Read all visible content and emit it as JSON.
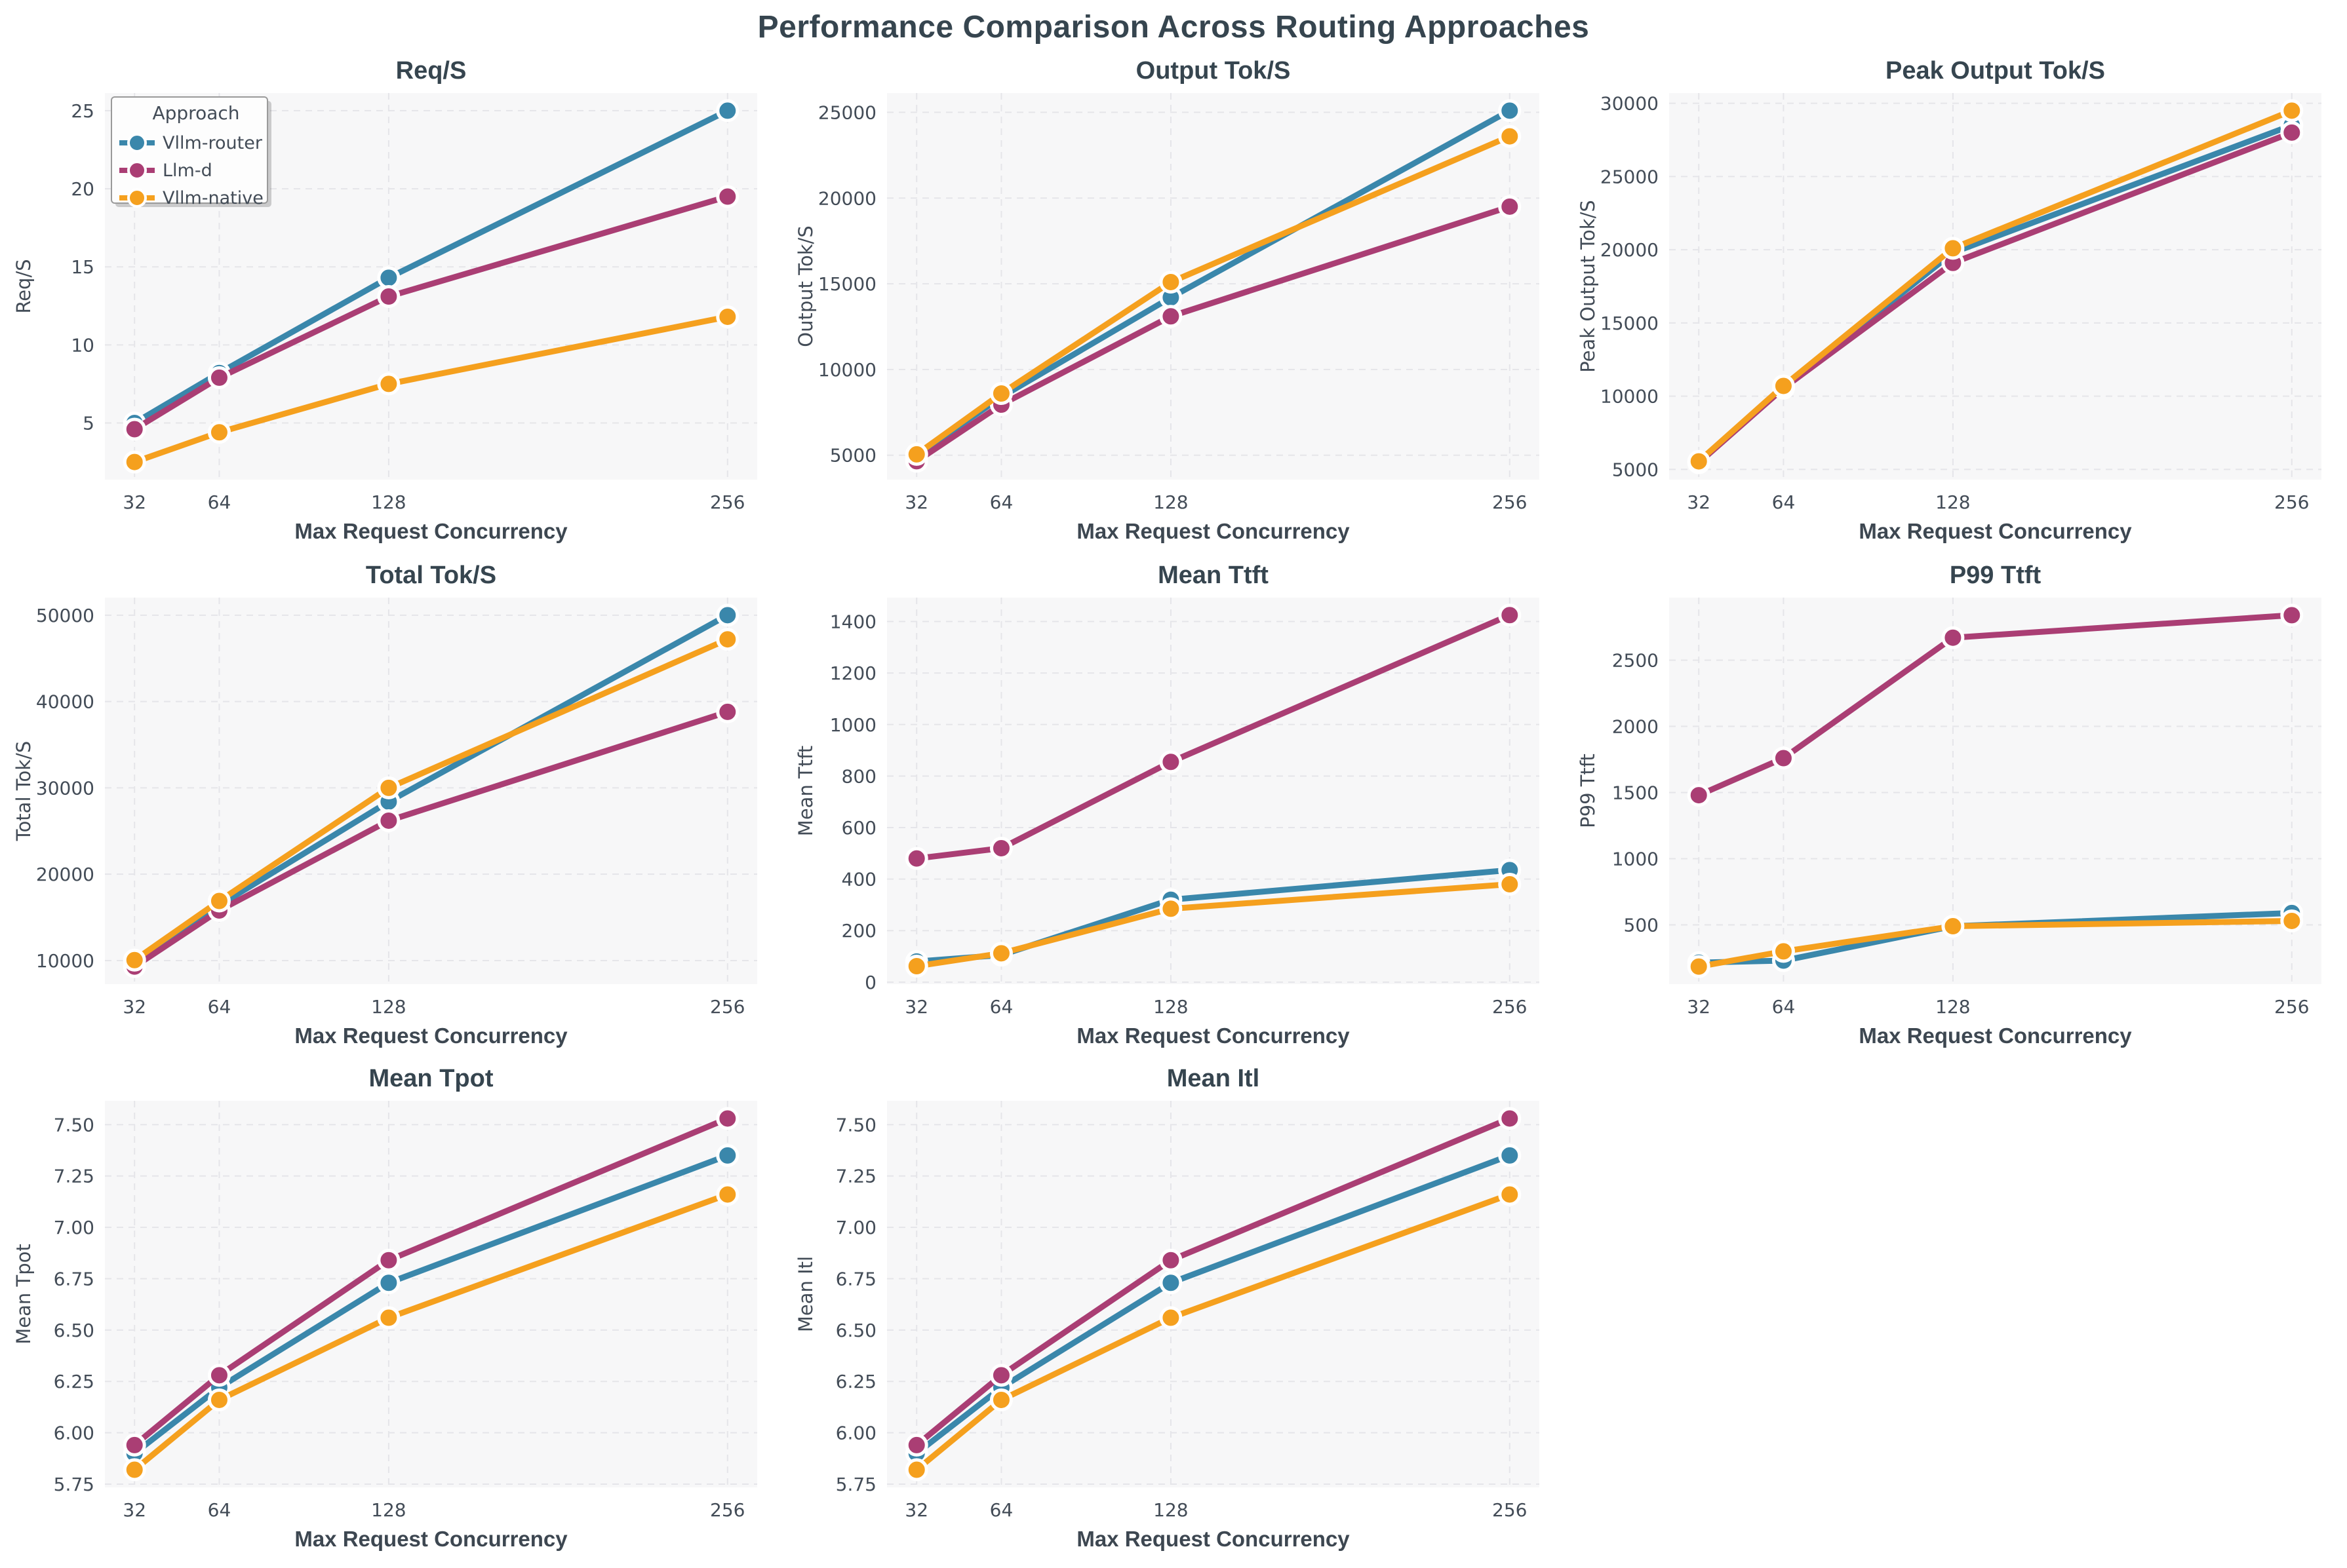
{
  "title": "Performance Comparison Across Routing Approaches",
  "xlabel": "Max Request Concurrency",
  "x_tick_labels": [
    "32",
    "64",
    "128",
    "256"
  ],
  "legend": {
    "title": "Approach"
  },
  "approaches": [
    {
      "name": "Vllm-router",
      "color": "#3a87ab"
    },
    {
      "name": "Llm-d",
      "color": "#aa3e74"
    },
    {
      "name": "Vllm-native",
      "color": "#f5a01e"
    }
  ],
  "style": {
    "plot_bg": "#f7f7f8",
    "grid_color": "#e5e5e9",
    "title_color": "#36454f",
    "tick_color": "#434c57",
    "axis_label_color": "#3d4751",
    "marker_edge": "#ffffff",
    "legend_bg": "#fdfdfd",
    "legend_border": "#9a9a9a"
  },
  "chart_data": [
    {
      "type": "line",
      "title": "Req/S",
      "ylabel": "Req/S",
      "xlabel": "Max Request Concurrency",
      "x": [
        32,
        64,
        128,
        256
      ],
      "xlim": [
        20.8,
        267.2
      ],
      "ylim": [
        1.37,
        26.13
      ],
      "grid": true,
      "legend": true,
      "legend_position": "upper left",
      "ytick_values": [
        5,
        10,
        15,
        20,
        25
      ],
      "ytick_labels": [
        "5",
        "10",
        "15",
        "20",
        "25"
      ],
      "series": [
        {
          "name": "Vllm-router",
          "values": [
            5.0,
            8.2,
            14.3,
            25.0
          ]
        },
        {
          "name": "Llm-d",
          "values": [
            4.6,
            7.9,
            13.1,
            19.5
          ]
        },
        {
          "name": "Vllm-native",
          "values": [
            2.5,
            4.4,
            7.5,
            11.8
          ]
        }
      ]
    },
    {
      "type": "line",
      "title": "Output Tok/S",
      "ylabel": "Output Tok/S",
      "xlabel": "Max Request Concurrency",
      "x": [
        32,
        64,
        128,
        256
      ],
      "xlim": [
        20.8,
        267.2
      ],
      "ylim": [
        3575,
        26125
      ],
      "grid": true,
      "legend": false,
      "ytick_values": [
        5000,
        10000,
        15000,
        20000,
        25000
      ],
      "ytick_labels": [
        "5000",
        "10000",
        "15000",
        "20000",
        "25000"
      ],
      "series": [
        {
          "name": "Vllm-router",
          "values": [
            5000,
            8400,
            14200,
            25100
          ]
        },
        {
          "name": "Llm-d",
          "values": [
            4650,
            7950,
            13100,
            19500
          ]
        },
        {
          "name": "Vllm-native",
          "values": [
            5050,
            8600,
            15100,
            23600
          ]
        }
      ]
    },
    {
      "type": "line",
      "title": "Peak Output Tok/S",
      "ylabel": "Peak Output Tok/S",
      "xlabel": "Max Request Concurrency",
      "x": [
        32,
        64,
        128,
        256
      ],
      "xlim": [
        20.8,
        267.2
      ],
      "ylim": [
        4300,
        30700
      ],
      "grid": true,
      "legend": false,
      "ytick_values": [
        5000,
        10000,
        15000,
        20000,
        25000,
        30000
      ],
      "ytick_labels": [
        "5000",
        "10000",
        "15000",
        "20000",
        "25000",
        "30000"
      ],
      "series": [
        {
          "name": "Vllm-router",
          "values": [
            5500,
            10600,
            19800,
            28500
          ]
        },
        {
          "name": "Llm-d",
          "values": [
            5450,
            10550,
            19100,
            28000
          ]
        },
        {
          "name": "Vllm-native",
          "values": [
            5550,
            10700,
            20100,
            29500
          ]
        }
      ]
    },
    {
      "type": "line",
      "title": "Total Tok/S",
      "ylabel": "Total Tok/S",
      "xlabel": "Max Request Concurrency",
      "x": [
        32,
        64,
        128,
        256
      ],
      "xlim": [
        20.8,
        267.2
      ],
      "ylim": [
        7265,
        52035
      ],
      "grid": true,
      "legend": false,
      "ytick_values": [
        10000,
        20000,
        30000,
        40000,
        50000
      ],
      "ytick_labels": [
        "10000",
        "20000",
        "30000",
        "40000",
        "50000"
      ],
      "series": [
        {
          "name": "Vllm-router",
          "values": [
            10000,
            16400,
            28400,
            50000
          ]
        },
        {
          "name": "Llm-d",
          "values": [
            9300,
            15800,
            26200,
            38800
          ]
        },
        {
          "name": "Vllm-native",
          "values": [
            10050,
            16900,
            30000,
            47200
          ]
        }
      ]
    },
    {
      "type": "line",
      "title": "Mean Ttft",
      "ylabel": "Mean Ttft",
      "xlabel": "Max Request Concurrency",
      "x": [
        32,
        64,
        128,
        256
      ],
      "xlim": [
        20.8,
        267.2
      ],
      "ylim": [
        -8,
        1493
      ],
      "grid": true,
      "legend": false,
      "ytick_values": [
        0,
        200,
        400,
        600,
        800,
        1000,
        1200,
        1400
      ],
      "ytick_labels": [
        "0",
        "200",
        "400",
        "600",
        "800",
        "1000",
        "1200",
        "1400"
      ],
      "series": [
        {
          "name": "Vllm-router",
          "values": [
            80,
            105,
            320,
            435
          ]
        },
        {
          "name": "Llm-d",
          "values": [
            480,
            520,
            855,
            1425
          ]
        },
        {
          "name": "Vllm-native",
          "values": [
            62,
            112,
            285,
            380
          ]
        }
      ]
    },
    {
      "type": "line",
      "title": "P99 Ttft",
      "ylabel": "P99 Ttft",
      "xlabel": "Max Request Concurrency",
      "x": [
        32,
        64,
        128,
        256
      ],
      "xlim": [
        20.8,
        267.2
      ],
      "ylim": [
        52,
        2973
      ],
      "grid": true,
      "legend": false,
      "ytick_values": [
        500,
        1000,
        1500,
        2000,
        2500
      ],
      "ytick_labels": [
        "500",
        "1000",
        "1500",
        "2000",
        "2500"
      ],
      "series": [
        {
          "name": "Vllm-router",
          "values": [
            215,
            230,
            490,
            590
          ]
        },
        {
          "name": "Llm-d",
          "values": [
            1480,
            1760,
            2670,
            2840
          ]
        },
        {
          "name": "Vllm-native",
          "values": [
            185,
            300,
            490,
            530
          ]
        }
      ]
    },
    {
      "type": "line",
      "title": "Mean Tpot",
      "ylabel": "Mean Tpot",
      "xlabel": "Max Request Concurrency",
      "x": [
        32,
        64,
        128,
        256
      ],
      "xlim": [
        20.8,
        267.2
      ],
      "ylim": [
        5.734,
        7.616
      ],
      "grid": true,
      "legend": false,
      "ytick_values": [
        5.75,
        6.0,
        6.25,
        6.5,
        6.75,
        7.0,
        7.25,
        7.5
      ],
      "ytick_labels": [
        "5.75",
        "6.00",
        "6.25",
        "6.50",
        "6.75",
        "7.00",
        "7.25",
        "7.50"
      ],
      "series": [
        {
          "name": "Vllm-router",
          "values": [
            5.9,
            6.22,
            6.73,
            7.35
          ]
        },
        {
          "name": "Llm-d",
          "values": [
            5.94,
            6.28,
            6.84,
            7.53
          ]
        },
        {
          "name": "Vllm-native",
          "values": [
            5.82,
            6.16,
            6.56,
            7.16
          ]
        }
      ]
    },
    {
      "type": "line",
      "title": "Mean Itl",
      "ylabel": "Mean Itl",
      "xlabel": "Max Request Concurrency",
      "x": [
        32,
        64,
        128,
        256
      ],
      "xlim": [
        20.8,
        267.2
      ],
      "ylim": [
        5.734,
        7.616
      ],
      "grid": true,
      "legend": false,
      "ytick_values": [
        5.75,
        6.0,
        6.25,
        6.5,
        6.75,
        7.0,
        7.25,
        7.5
      ],
      "ytick_labels": [
        "5.75",
        "6.00",
        "6.25",
        "6.50",
        "6.75",
        "7.00",
        "7.25",
        "7.50"
      ],
      "series": [
        {
          "name": "Vllm-router",
          "values": [
            5.9,
            6.22,
            6.73,
            7.35
          ]
        },
        {
          "name": "Llm-d",
          "values": [
            5.94,
            6.28,
            6.84,
            7.53
          ]
        },
        {
          "name": "Vllm-native",
          "values": [
            5.82,
            6.16,
            6.56,
            7.16
          ]
        }
      ]
    }
  ]
}
